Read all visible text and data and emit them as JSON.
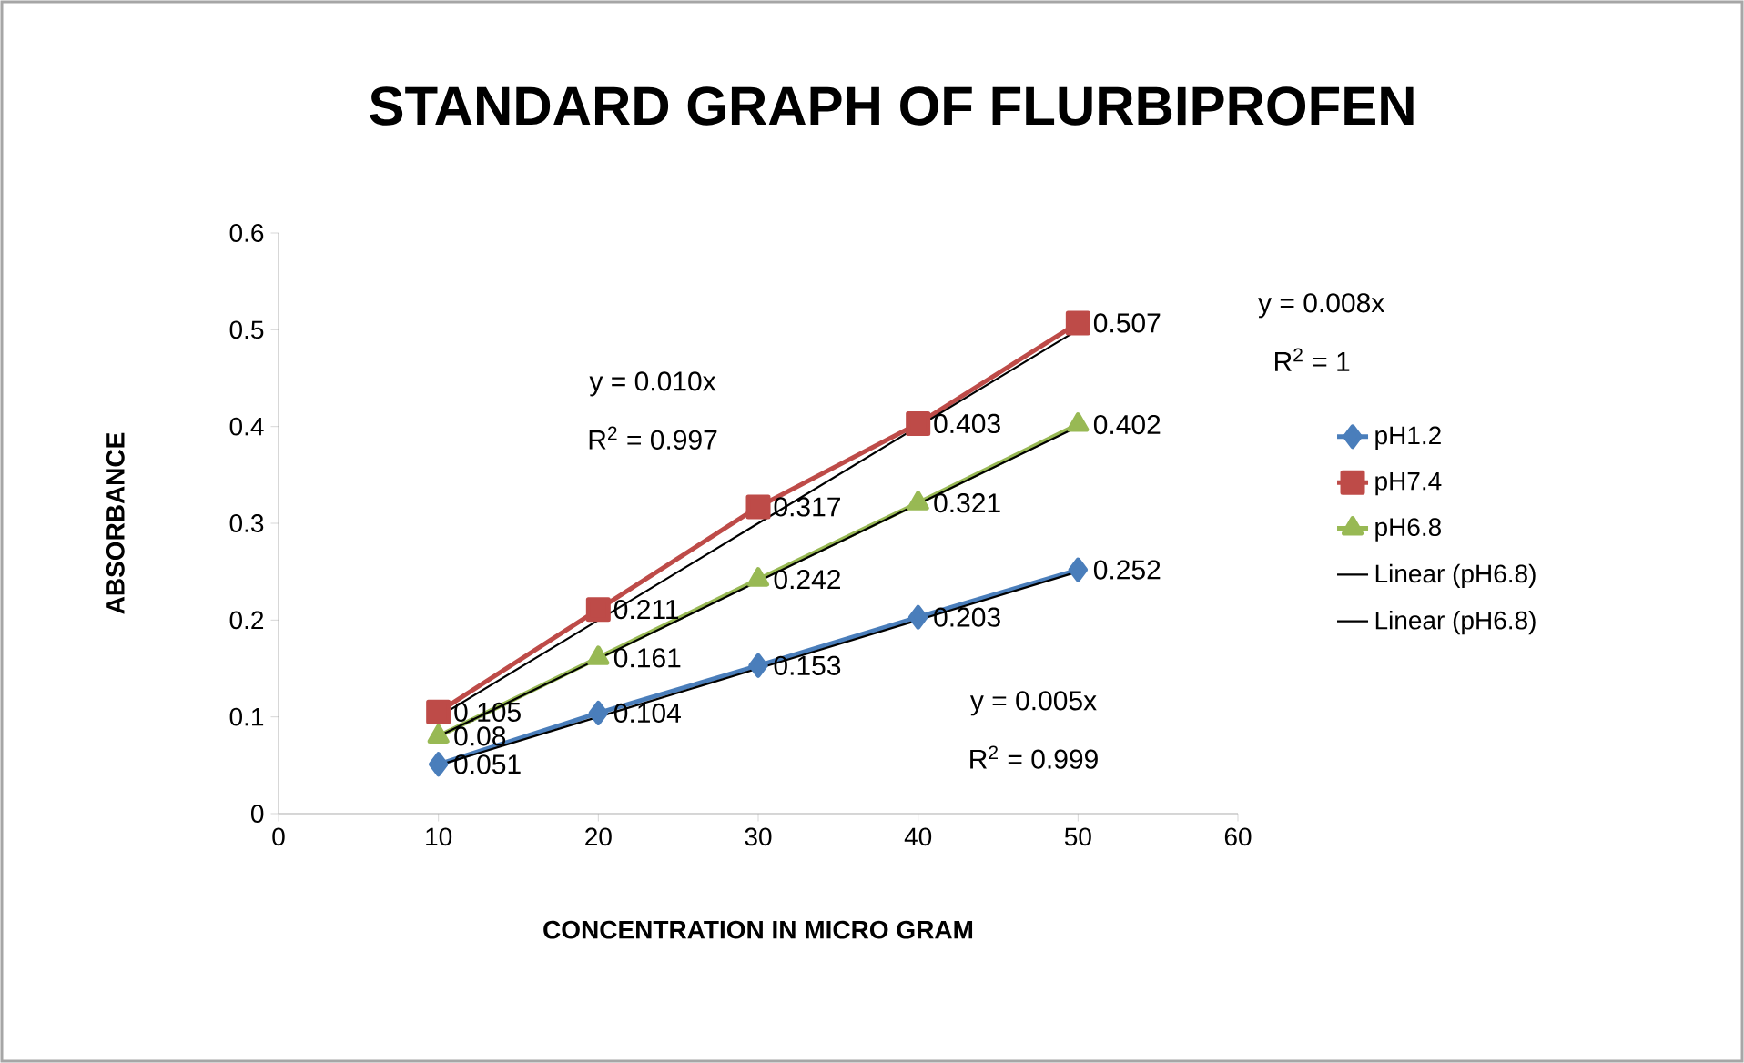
{
  "chart_data": {
    "type": "line",
    "title": "STANDARD GRAPH OF FLURBIPROFEN",
    "xlabel": "CONCENTRATION IN MICRO GRAM",
    "ylabel": "ABSORBANCE",
    "x": [
      10,
      20,
      30,
      40,
      50
    ],
    "xlim": [
      0,
      60
    ],
    "xticks": [
      0,
      10,
      20,
      30,
      40,
      50,
      60
    ],
    "ylim": [
      0,
      0.6
    ],
    "yticks": [
      0,
      0.1,
      0.2,
      0.3,
      0.4,
      0.5,
      0.6
    ],
    "legend": "right",
    "line_style": "solid",
    "series": [
      {
        "name": "pH1.2",
        "color": "#4a7ebb",
        "marker": "diamond",
        "values": [
          0.051,
          0.104,
          0.153,
          0.203,
          0.252
        ],
        "value_labels": [
          "0.051",
          "0.104",
          "0.153",
          "0.203",
          "0.252"
        ]
      },
      {
        "name": "pH7.4",
        "color": "#be4b48",
        "marker": "square",
        "values": [
          0.105,
          0.211,
          0.317,
          0.403,
          0.507
        ],
        "value_labels": [
          "0.105",
          "0.211",
          "0.317",
          "0.403",
          "0.507"
        ]
      },
      {
        "name": "pH6.8",
        "color": "#98b954",
        "marker": "triangle",
        "values": [
          0.08,
          0.161,
          0.242,
          0.321,
          0.402
        ],
        "value_labels": [
          "0.08",
          "0.161",
          "0.242",
          "0.321",
          "0.402"
        ]
      },
      {
        "name": "Linear (pH6.8)",
        "color": "#000000",
        "marker": "none",
        "values": [
          0.1,
          0.2,
          0.3,
          0.4,
          0.5
        ]
      },
      {
        "name": "Linear (pH6.8)",
        "color": "#000000",
        "marker": "none",
        "values": [
          0.08,
          0.16,
          0.24,
          0.32,
          0.4
        ]
      },
      {
        "color": "#000000",
        "marker": "none",
        "values": [
          0.05,
          0.1,
          0.15,
          0.2,
          0.25
        ]
      }
    ],
    "annotations": [
      "y = 0.010x",
      "R$^{2}$ = 0.997",
      "y = 0.008x",
      "R$^{2}$ = 1",
      "y = 0.005x",
      "R$^{2}$ = 0.999"
    ]
  }
}
